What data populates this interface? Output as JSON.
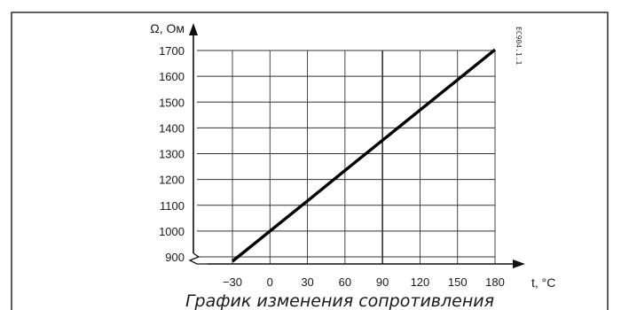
{
  "figure": {
    "code": "EC904.1.1",
    "caption": "График изменения сопротивления"
  },
  "chart_data": {
    "type": "line",
    "xlabel": "t, °C",
    "ylabel": "Ω, Ом",
    "x_ticks": [
      -30,
      0,
      30,
      60,
      90,
      120,
      150,
      180
    ],
    "x_tick_labels": [
      "−30",
      "0",
      "30",
      "60",
      "90",
      "120",
      "150",
      "180"
    ],
    "y_ticks": [
      900,
      1000,
      1100,
      1200,
      1300,
      1400,
      1500,
      1600,
      1700
    ],
    "y_tick_labels": [
      "900",
      "1000",
      "1100",
      "1200",
      "1300",
      "1400",
      "1500",
      "1600",
      "1700"
    ],
    "xlim": [
      -30,
      180
    ],
    "ylim": [
      900,
      1700
    ],
    "grid": true,
    "series": [
      {
        "x": [
          -30,
          0,
          30,
          60,
          90,
          120,
          150,
          180
        ],
        "y": [
          883,
          1000,
          1117,
          1235,
          1352,
          1469,
          1586,
          1703
        ]
      }
    ]
  }
}
